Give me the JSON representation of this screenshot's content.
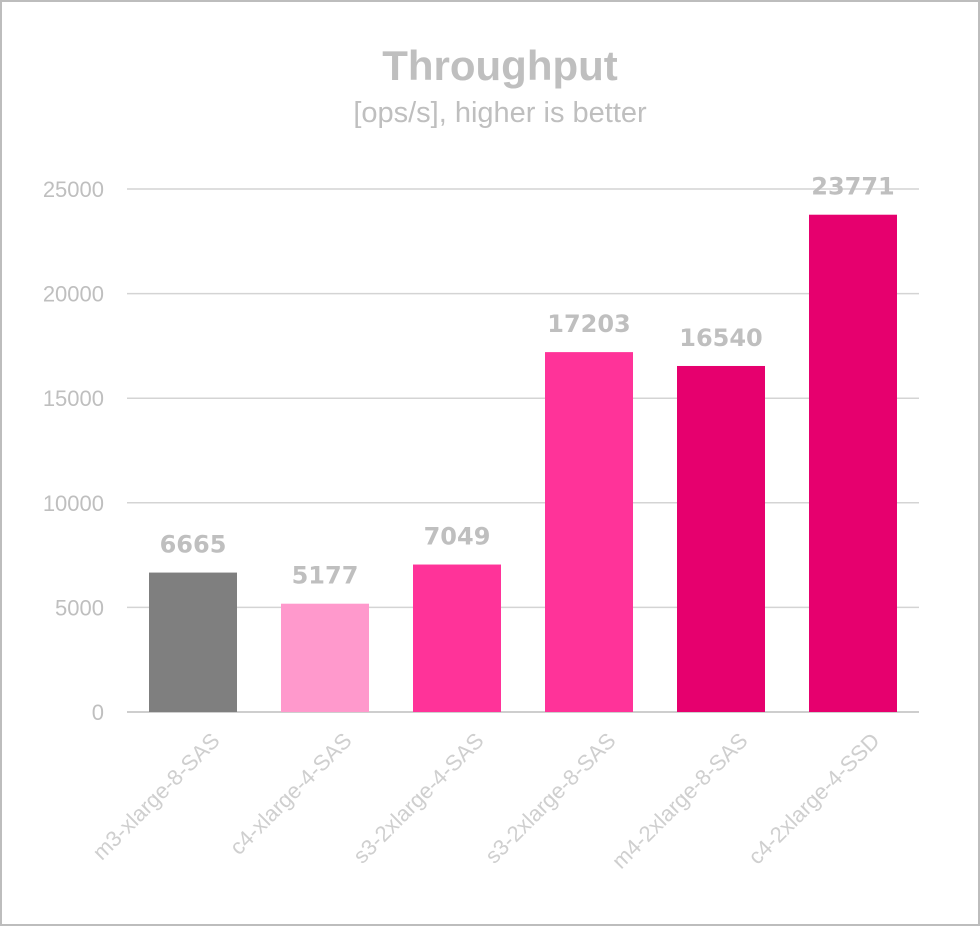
{
  "chart_data": {
    "type": "bar",
    "title": "Throughput",
    "subtitle": "[ops/s], higher is better",
    "categories": [
      "m3-xlarge-8-SAS",
      "c4-xlarge-4-SAS",
      "s3-2xlarge-4-SAS",
      "s3-2xlarge-8-SAS",
      "m4-2xlarge-8-SAS",
      "c4-2xlarge-4-SSD"
    ],
    "values": [
      6665,
      5177,
      7049,
      17203,
      16540,
      23771
    ],
    "data_labels": [
      "6665",
      "5177",
      "7049",
      "17203",
      "16540",
      "23771"
    ],
    "colors": [
      "#7f7f7f",
      "#ff99cc",
      "#ff3399",
      "#ff3399",
      "#e6006e",
      "#e6006e"
    ],
    "ylim": [
      0,
      25000
    ],
    "yticks": [
      0,
      5000,
      10000,
      15000,
      20000,
      25000
    ],
    "ytick_labels": [
      "0",
      "5000",
      "10000",
      "15000",
      "20000",
      "25000"
    ],
    "grid": true,
    "legend": "none"
  }
}
